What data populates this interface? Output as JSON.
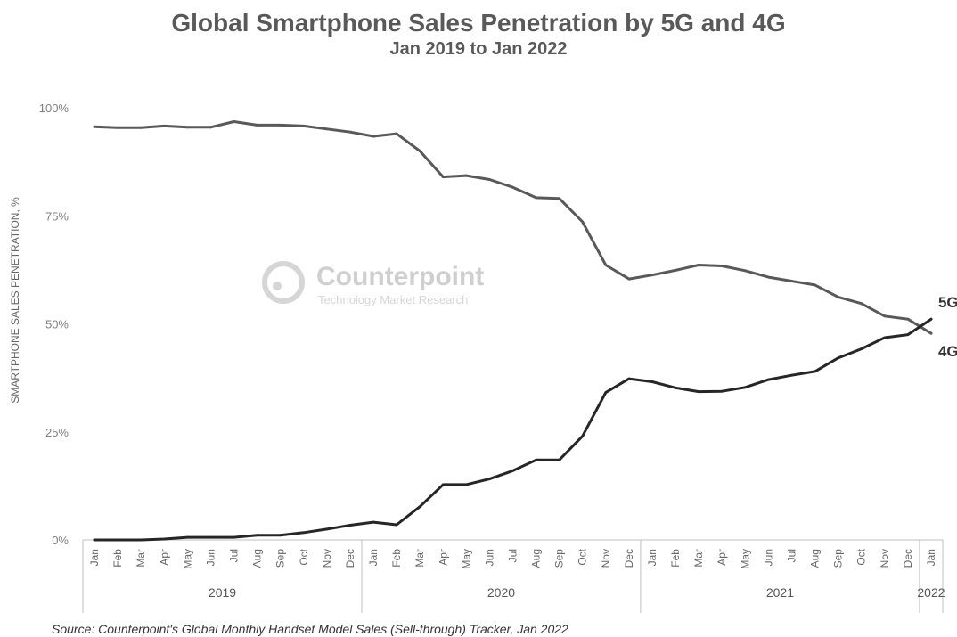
{
  "chart_data": {
    "type": "line",
    "title": "Global Smartphone Sales Penetration by 5G and 4G",
    "subtitle": "Jan 2019 to Jan 2022",
    "ylabel": "SMARTPHONE SALES PENETRATION, %",
    "ylim": [
      0,
      100
    ],
    "y_ticks": [
      "0%",
      "25%",
      "50%",
      "75%",
      "100%"
    ],
    "y_tick_values": [
      0,
      25,
      50,
      75,
      100
    ],
    "x": [
      "Jan",
      "Feb",
      "Mar",
      "Apr",
      "May",
      "Jun",
      "Jul",
      "Aug",
      "Sep",
      "Oct",
      "Nov",
      "Dec",
      "Jan",
      "Feb",
      "Mar",
      "Apr",
      "May",
      "Jun",
      "Jul",
      "Aug",
      "Sep",
      "Oct",
      "Nov",
      "Dec",
      "Jan",
      "Feb",
      "Mar",
      "Apr",
      "May",
      "Jun",
      "Jul",
      "Aug",
      "Sep",
      "Oct",
      "Nov",
      "Dec",
      "Jan"
    ],
    "year_groups": [
      {
        "label": "2019",
        "count": 12
      },
      {
        "label": "2020",
        "count": 12
      },
      {
        "label": "2021",
        "count": 12
      },
      {
        "label": "2022",
        "count": 1
      }
    ],
    "series": [
      {
        "name": "4G",
        "color": "#595959",
        "values": [
          95.6,
          95.4,
          95.4,
          95.8,
          95.5,
          95.5,
          96.8,
          96.0,
          96.0,
          95.8,
          95.1,
          94.4,
          93.4,
          94.0,
          90.0,
          84.0,
          84.3,
          83.4,
          81.6,
          79.2,
          79.0,
          73.6,
          63.6,
          60.4,
          61.3,
          62.4,
          63.6,
          63.4,
          62.3,
          60.8,
          59.9,
          59.0,
          56.2,
          54.7,
          51.8,
          51.1,
          47.8
        ]
      },
      {
        "name": "5G",
        "color": "#262626",
        "values": [
          0.0,
          0.0,
          0.0,
          0.2,
          0.6,
          0.6,
          0.6,
          1.1,
          1.1,
          1.7,
          2.5,
          3.4,
          4.1,
          3.5,
          7.7,
          12.8,
          12.8,
          14.1,
          16.0,
          18.5,
          18.5,
          24.0,
          34.1,
          37.3,
          36.6,
          35.2,
          34.3,
          34.4,
          35.3,
          37.1,
          38.1,
          39.0,
          42.1,
          44.2,
          46.8,
          47.5,
          51.1
        ]
      }
    ]
  },
  "watermark": {
    "name": "Counterpoint",
    "tagline": "Technology Market Research"
  },
  "source": "Source: Counterpoint's Global Monthly Handset Model Sales (Sell-through) Tracker, Jan 2022"
}
